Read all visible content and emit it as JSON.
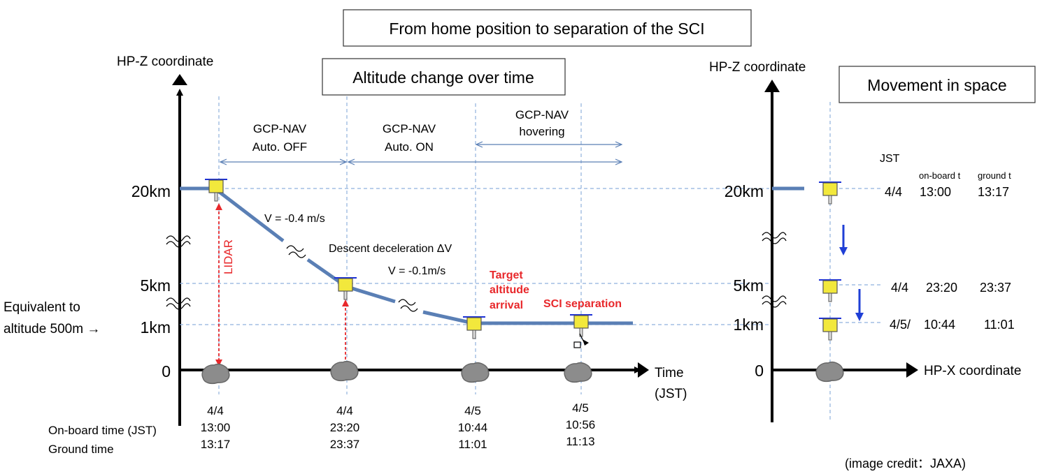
{
  "title": "From home position to separation of the SCI",
  "left_panel": {
    "subtitle": "Altitude change over time",
    "y_axis_label": "HP-Z coordinate",
    "x_axis_label_line1": "Time",
    "x_axis_label_line2": "(JST)",
    "y_ticks": [
      "20km",
      "5km",
      "1km",
      "0"
    ],
    "equivalent_note_line1": "Equivalent to",
    "equivalent_note_line2": "altitude 500m →",
    "phases": [
      {
        "line1": "GCP-NAV",
        "line2": "Auto. OFF"
      },
      {
        "line1": "GCP-NAV",
        "line2": "Auto. ON"
      },
      {
        "line1": "GCP-NAV",
        "line2": "hovering"
      }
    ],
    "annotations": {
      "lidar": "LIDAR",
      "v1": "V = -0.4 m/s",
      "descent": "Descent deceleration ΔV",
      "v2": "V = -0.1m/s",
      "target_1": "Target",
      "target_2": "altitude",
      "target_3": "arrival",
      "sci": "SCI separation"
    },
    "time_row_labels": {
      "onboard": "On-board time (JST)",
      "ground": "Ground time"
    },
    "events": [
      {
        "date": "4/4",
        "onboard": "13:00",
        "ground": "13:17"
      },
      {
        "date": "4/4",
        "onboard": "23:20",
        "ground": "23:37"
      },
      {
        "date": "4/5",
        "onboard": "10:44",
        "ground": "11:01"
      },
      {
        "date": "4/5",
        "onboard": "10:56",
        "ground": "11:13"
      }
    ]
  },
  "right_panel": {
    "subtitle": "Movement in space",
    "y_axis_label": "HP-Z coordinate",
    "x_axis_label": "HP-X coordinate",
    "y_ticks": [
      "20km",
      "5km",
      "1km",
      "0"
    ],
    "table_header": {
      "jst": "JST",
      "onboard": "on-board t",
      "ground": "ground t"
    },
    "rows": [
      {
        "date": "4/4",
        "onboard": "13:00",
        "ground": "13:17"
      },
      {
        "date": "4/4",
        "onboard": "23:20",
        "ground": "23:37"
      },
      {
        "date": "4/5/",
        "onboard": "10:44",
        "ground": "11:01"
      }
    ]
  },
  "credit": "(image credit：JAXA)",
  "colors": {
    "line": "#5a7fb5",
    "guide": "#8fb0dd",
    "red": "#e8282b",
    "blue_arrow": "#1f3fd6",
    "spacecraft": "#f2e83c",
    "rock": "#8c8c8c"
  }
}
